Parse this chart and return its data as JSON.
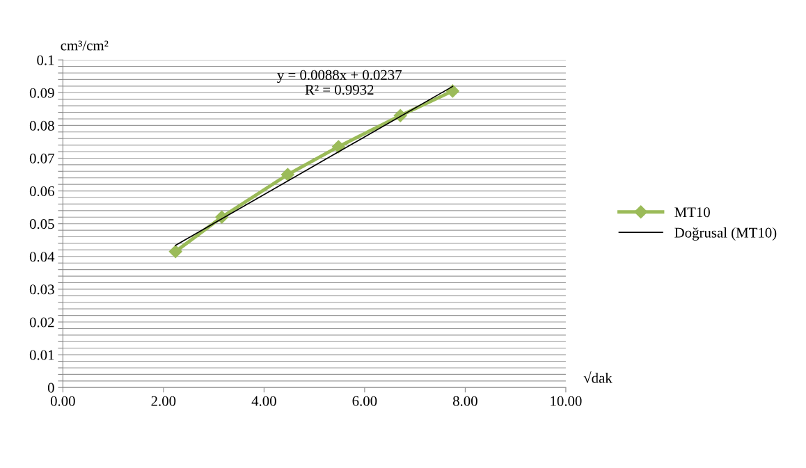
{
  "chart_data": {
    "type": "line",
    "xlabel": "√dak",
    "ylabel": "cm³/cm²",
    "series": [
      {
        "name": "MT10",
        "color": "#9bbb59",
        "marker": "diamond",
        "x": [
          2.24,
          3.16,
          4.47,
          5.48,
          6.71,
          7.75
        ],
        "values": [
          0.0415,
          0.052,
          0.065,
          0.0735,
          0.083,
          0.0905
        ]
      },
      {
        "name": "Doğrusal (MT10)",
        "color": "#000000",
        "marker": "none",
        "x": [
          2.24,
          7.75
        ],
        "values": [
          0.0434,
          0.0919
        ]
      }
    ],
    "annotations": [
      "y = 0.0088x + 0.0237",
      "R² = 0.9932"
    ],
    "xlim": [
      0,
      10
    ],
    "ylim": [
      0,
      0.1
    ],
    "xticks": [
      {
        "value": 0,
        "label": "0.00"
      },
      {
        "value": 2,
        "label": "2.00"
      },
      {
        "value": 4,
        "label": "4.00"
      },
      {
        "value": 6,
        "label": "6.00"
      },
      {
        "value": 8,
        "label": "8.00"
      },
      {
        "value": 10,
        "label": "10.00"
      }
    ],
    "yticks": [
      0,
      {
        "value": 0.002,
        "label": null
      },
      {
        "value": 0.004,
        "label": null
      },
      {
        "value": 0.006,
        "label": null
      },
      {
        "value": 0.008,
        "label": null
      },
      0.01,
      {
        "value": 0.012,
        "label": null
      },
      {
        "value": 0.014,
        "label": null
      },
      {
        "value": 0.016,
        "label": null
      },
      {
        "value": 0.018,
        "label": null
      },
      0.02,
      {
        "value": 0.022,
        "label": null
      },
      {
        "value": 0.024,
        "label": null
      },
      {
        "value": 0.026,
        "label": null
      },
      {
        "value": 0.028,
        "label": null
      },
      0.03,
      {
        "value": 0.032,
        "label": null
      },
      {
        "value": 0.034,
        "label": null
      },
      {
        "value": 0.036,
        "label": null
      },
      {
        "value": 0.038,
        "label": null
      },
      0.04,
      {
        "value": 0.042,
        "label": null
      },
      {
        "value": 0.044,
        "label": null
      },
      {
        "value": 0.046,
        "label": null
      },
      {
        "value": 0.048,
        "label": null
      },
      0.05,
      {
        "value": 0.052,
        "label": null
      },
      {
        "value": 0.054,
        "label": null
      },
      {
        "value": 0.056,
        "label": null
      },
      {
        "value": 0.058,
        "label": null
      },
      0.06,
      {
        "value": 0.062,
        "label": null
      },
      {
        "value": 0.064,
        "label": null
      },
      {
        "value": 0.066,
        "label": null
      },
      {
        "value": 0.068,
        "label": null
      },
      0.07,
      {
        "value": 0.072,
        "label": null
      },
      {
        "value": 0.074,
        "label": null
      },
      {
        "value": 0.076,
        "label": null
      },
      {
        "value": 0.078,
        "label": null
      },
      0.08,
      {
        "value": 0.082,
        "label": null
      },
      {
        "value": 0.084,
        "label": null
      },
      {
        "value": 0.086,
        "label": null
      },
      {
        "value": 0.088,
        "label": null
      },
      0.09,
      {
        "value": 0.092,
        "label": null
      },
      {
        "value": 0.094,
        "label": null
      },
      {
        "value": 0.096,
        "label": null
      },
      {
        "value": 0.098,
        "label": null
      },
      0.1
    ],
    "grid": "y",
    "legend": "right"
  }
}
